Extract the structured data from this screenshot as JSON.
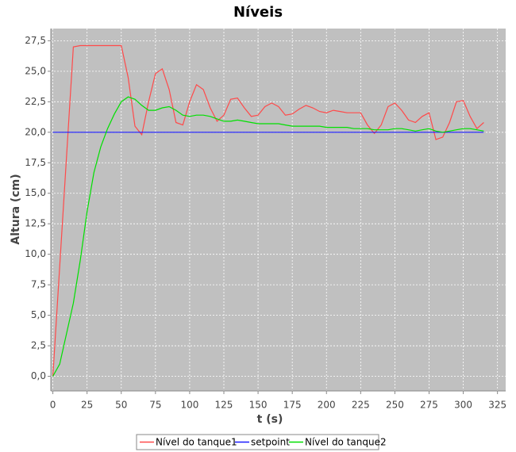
{
  "chart_data": {
    "type": "line",
    "title": "Níveis",
    "x_label": "t (s)",
    "y_label": "Altura (cm)",
    "x": [
      0,
      5,
      10,
      15,
      20,
      25,
      30,
      35,
      40,
      45,
      50,
      55,
      60,
      65,
      70,
      75,
      80,
      85,
      90,
      95,
      100,
      105,
      110,
      115,
      120,
      125,
      130,
      135,
      140,
      145,
      150,
      155,
      160,
      165,
      170,
      175,
      180,
      185,
      190,
      195,
      200,
      205,
      210,
      215,
      220,
      225,
      230,
      235,
      240,
      245,
      250,
      255,
      260,
      265,
      270,
      275,
      280,
      285,
      290,
      295,
      300,
      305,
      310,
      315
    ],
    "series": [
      {
        "name": "Nível do tanque1",
        "color": "#ff4a4a",
        "values": [
          0,
          9,
          18,
          27,
          27.1,
          27.1,
          27.1,
          27.1,
          27.1,
          27.1,
          27.1,
          24.5,
          20.5,
          19.8,
          22.5,
          24.8,
          25.2,
          23.5,
          20.8,
          20.6,
          22.5,
          23.9,
          23.5,
          22,
          20.9,
          21.4,
          22.7,
          22.8,
          22,
          21.3,
          21.4,
          22.1,
          22.4,
          22.1,
          21.4,
          21.5,
          21.9,
          22.2,
          22,
          21.7,
          21.6,
          21.8,
          21.7,
          21.6,
          21.6,
          21.6,
          20.6,
          19.9,
          20.6,
          22.1,
          22.4,
          21.8,
          21,
          20.8,
          21.3,
          21.6,
          19.4,
          19.6,
          20.8,
          22.5,
          22.6,
          21.3,
          20.3,
          20.8
        ]
      },
      {
        "name": "setpoint",
        "color": "#1a1aff",
        "values": [
          20,
          20,
          20,
          20,
          20,
          20,
          20,
          20,
          20,
          20,
          20,
          20,
          20,
          20,
          20,
          20,
          20,
          20,
          20,
          20,
          20,
          20,
          20,
          20,
          20,
          20,
          20,
          20,
          20,
          20,
          20,
          20,
          20,
          20,
          20,
          20,
          20,
          20,
          20,
          20,
          20,
          20,
          20,
          20,
          20,
          20,
          20,
          20,
          20,
          20,
          20,
          20,
          20,
          20,
          20,
          20,
          20,
          20,
          20,
          20,
          20,
          20,
          20,
          20
        ]
      },
      {
        "name": "Nível do tanque2",
        "color": "#00e000",
        "values": [
          0,
          1,
          3.5,
          6,
          9.5,
          13.5,
          16.7,
          18.8,
          20.3,
          21.5,
          22.5,
          22.9,
          22.7,
          22.2,
          21.8,
          21.8,
          22,
          22.1,
          21.8,
          21.4,
          21.3,
          21.4,
          21.4,
          21.3,
          21.1,
          20.9,
          20.9,
          21,
          20.9,
          20.8,
          20.7,
          20.7,
          20.7,
          20.7,
          20.6,
          20.5,
          20.5,
          20.5,
          20.5,
          20.5,
          20.4,
          20.4,
          20.4,
          20.4,
          20.3,
          20.3,
          20.3,
          20.2,
          20.2,
          20.2,
          20.3,
          20.3,
          20.2,
          20.1,
          20.2,
          20.3,
          20.1,
          20,
          20.1,
          20.2,
          20.3,
          20.3,
          20.2,
          20.1
        ]
      }
    ],
    "xlim": [
      -1.5,
      331
    ],
    "xticks": [
      0,
      25,
      50,
      75,
      100,
      125,
      150,
      175,
      200,
      225,
      250,
      275,
      300,
      325
    ],
    "ylim": [
      -1.2,
      28.5
    ],
    "yticks": [
      {
        "value": 0,
        "label": "0,0"
      },
      {
        "value": 2.5,
        "label": "2,5"
      },
      {
        "value": 5,
        "label": "5,0"
      },
      {
        "value": 7.5,
        "label": "7,5"
      },
      {
        "value": 10,
        "label": "10,0"
      },
      {
        "value": 12.5,
        "label": "12,5"
      },
      {
        "value": 15,
        "label": "15,0"
      },
      {
        "value": 17.5,
        "label": "17,5"
      },
      {
        "value": 20,
        "label": "20,0"
      },
      {
        "value": 22.5,
        "label": "22,5"
      },
      {
        "value": 25,
        "label": "25,0"
      },
      {
        "value": 27.5,
        "label": "27,5"
      }
    ],
    "grid": true
  }
}
